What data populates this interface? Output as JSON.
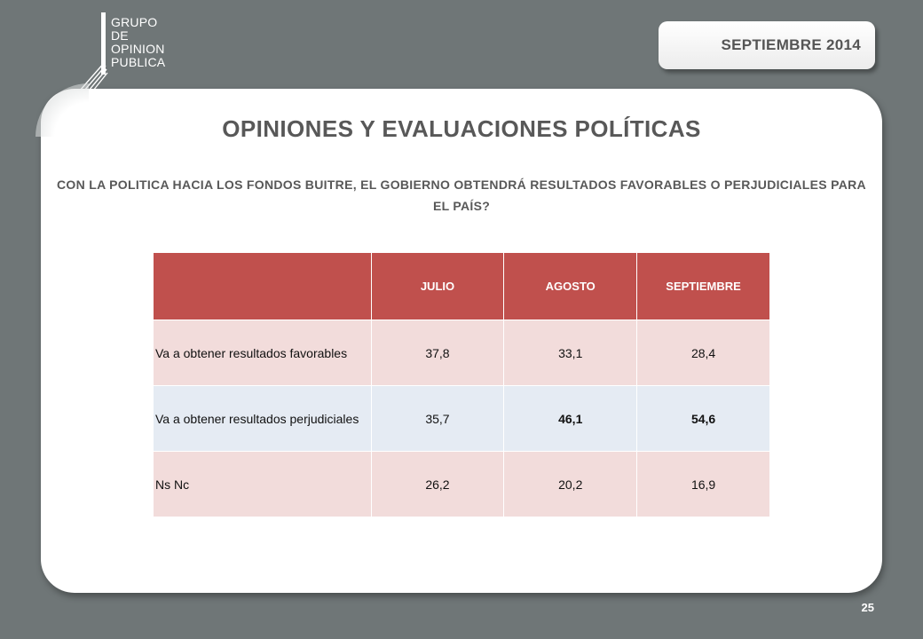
{
  "logo": {
    "lines": [
      "GRUPO",
      "DE",
      "OPINION",
      "PUBLICA"
    ]
  },
  "date_badge": "SEPTIEMBRE  2014",
  "title": "OPINIONES Y EVALUACIONES POLÍTICAS",
  "question": "CON LA POLITICA HACIA LOS FONDOS BUITRE, EL GOBIERNO OBTENDRÁ  RESULTADOS FAVORABLES O PERJUDICIALES PARA EL PAÍS?",
  "table": {
    "headers": [
      "",
      "JULIO",
      "AGOSTO",
      "SEPTIEMBRE"
    ],
    "rows": [
      {
        "label": "Va a obtener resultados favorables",
        "values": [
          "37,8",
          "33,1",
          "28,4"
        ]
      },
      {
        "label": "Va a obtener resultados perjudiciales",
        "values": [
          "35,7",
          "46,1",
          "54,6"
        ]
      },
      {
        "label": "Ns Nc",
        "values": [
          "26,2",
          "20,2",
          "16,9"
        ]
      }
    ]
  },
  "page_number": "25",
  "colors": {
    "background": "#6f7677",
    "header_red": "#c0504d",
    "row_pink": "#f2dcdb",
    "row_blue": "#e5ebf3"
  }
}
